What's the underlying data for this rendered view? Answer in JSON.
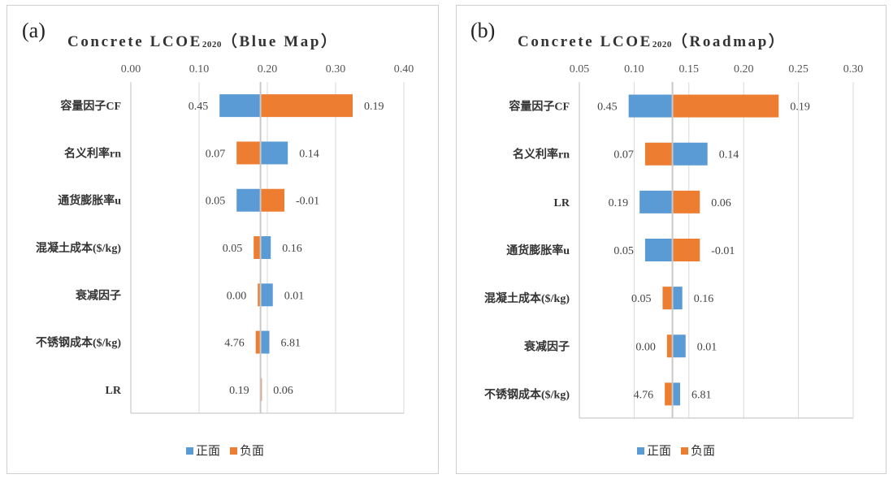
{
  "colors": {
    "positive": "#5b9bd5",
    "negative": "#ed7d31",
    "grid": "#d9d9d9",
    "axis": "#bfbfbf"
  },
  "chart_data": [
    {
      "type": "bar",
      "orientation": "horizontal",
      "panel_label": "(a)",
      "title": {
        "main": "Concrete LCOE",
        "sub": "2020",
        "tail": "（Blue Map）"
      },
      "x_axis": {
        "min": 0.0,
        "max": 0.4,
        "ticks": [
          "0.00",
          "0.10",
          "0.20",
          "0.30",
          "0.40"
        ],
        "position": "top"
      },
      "baseline": 0.19,
      "categories": [
        "容量因子CF",
        "名义利率rn",
        "通货膨胀率u",
        "混凝土成本($/kg)",
        "衰减因子",
        "不锈钢成本($/kg)",
        "LR"
      ],
      "series": [
        {
          "name": "正面",
          "values": [
            0.13,
            0.23,
            0.155,
            0.205,
            0.208,
            0.203,
            0.19
          ]
        },
        {
          "name": "负面",
          "values": [
            0.325,
            0.155,
            0.225,
            0.18,
            0.186,
            0.183,
            0.192
          ]
        }
      ],
      "left_labels": [
        "0.45",
        "0.07",
        "0.05",
        "0.05",
        "0.00",
        "4.76",
        "0.19"
      ],
      "right_labels": [
        "0.19",
        "0.14",
        "-0.01",
        "0.16",
        "0.01",
        "6.81",
        "0.06"
      ],
      "legend": {
        "items": [
          "正面",
          "负面"
        ],
        "position": "bottom"
      }
    },
    {
      "type": "bar",
      "orientation": "horizontal",
      "panel_label": "(b)",
      "title": {
        "main": "Concrete LCOE",
        "sub": "2020",
        "tail": "（Roadmap）"
      },
      "x_axis": {
        "min": 0.05,
        "max": 0.3,
        "ticks": [
          "0.05",
          "0.10",
          "0.15",
          "0.20",
          "0.25",
          "0.30"
        ],
        "position": "top"
      },
      "baseline": 0.135,
      "categories": [
        "容量因子CF",
        "名义利率rn",
        "LR",
        "通货膨胀率u",
        "混凝土成本($/kg)",
        "衰减因子",
        "不锈钢成本($/kg)"
      ],
      "series": [
        {
          "name": "正面",
          "values": [
            0.095,
            0.167,
            0.105,
            0.11,
            0.144,
            0.147,
            0.142
          ]
        },
        {
          "name": "负面",
          "values": [
            0.232,
            0.11,
            0.16,
            0.16,
            0.126,
            0.13,
            0.128
          ]
        }
      ],
      "left_labels": [
        "0.45",
        "0.07",
        "0.19",
        "0.05",
        "0.05",
        "0.00",
        "4.76"
      ],
      "right_labels": [
        "0.19",
        "0.14",
        "0.06",
        "-0.01",
        "0.16",
        "0.01",
        "6.81"
      ],
      "legend": {
        "items": [
          "正面",
          "负面"
        ],
        "position": "bottom"
      }
    }
  ]
}
